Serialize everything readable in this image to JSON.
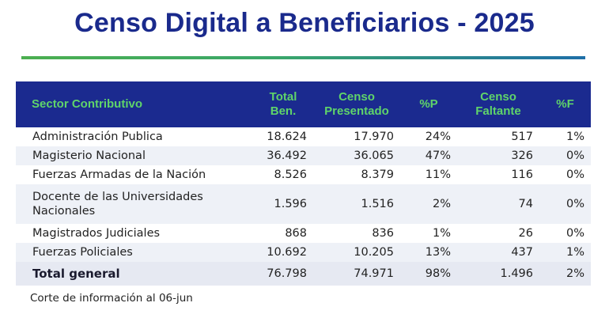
{
  "title": "Censo Digital a Beneficiarios - 2025",
  "colors": {
    "title": "#1a2a8c",
    "header_bg": "#1b2a8f",
    "header_text": "#5fd46a",
    "divider_start": "#4caf50",
    "divider_end": "#1f6fa8"
  },
  "table": {
    "headers": {
      "sector": "Sector Contributivo",
      "total_line1": "Total",
      "total_line2": "Ben.",
      "presented_line1": "Censo",
      "presented_line2": "Presentado",
      "pct_p": "%P",
      "missing_line1": "Censo",
      "missing_line2": "Faltante",
      "pct_f": "%F"
    },
    "rows": [
      {
        "sector": "Administración Publica",
        "total": "18.624",
        "presented": "17.970",
        "pct_p": "24%",
        "missing": "517",
        "pct_f": "1%"
      },
      {
        "sector": "Magisterio Nacional",
        "total": "36.492",
        "presented": "36.065",
        "pct_p": "47%",
        "missing": "326",
        "pct_f": "0%"
      },
      {
        "sector": "Fuerzas Armadas de la Nación",
        "total": "8.526",
        "presented": "8.379",
        "pct_p": "11%",
        "missing": "116",
        "pct_f": "0%"
      },
      {
        "sector": "Docente de las Universidades Nacionales",
        "total": "1.596",
        "presented": "1.516",
        "pct_p": "2%",
        "missing": "74",
        "pct_f": "0%"
      },
      {
        "sector": "Magistrados Judiciales",
        "total": "868",
        "presented": "836",
        "pct_p": "1%",
        "missing": "26",
        "pct_f": "0%"
      },
      {
        "sector": "Fuerzas Policiales",
        "total": "10.692",
        "presented": "10.205",
        "pct_p": "13%",
        "missing": "437",
        "pct_f": "1%"
      }
    ],
    "total_row": {
      "sector": "Total general",
      "total": "76.798",
      "presented": "74.971",
      "pct_p": "98%",
      "missing": "1.496",
      "pct_f": "2%"
    }
  },
  "footnote": "Corte de información al 06-jun"
}
